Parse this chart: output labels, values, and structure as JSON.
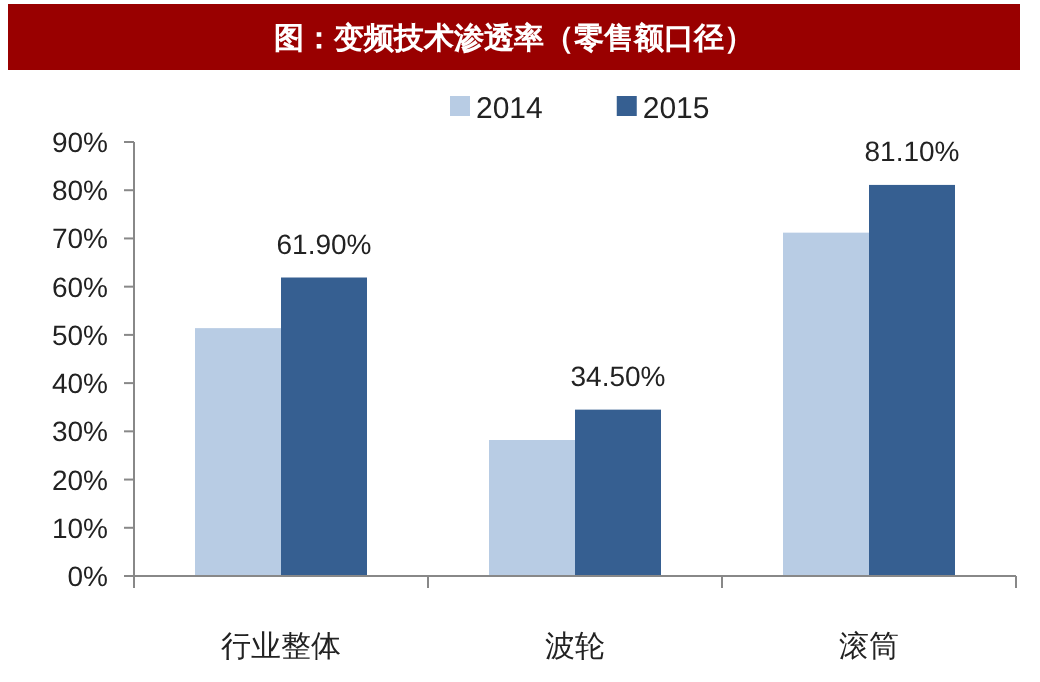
{
  "chart_data": {
    "type": "bar",
    "title": "图：变频技术渗透率（零售额口径）",
    "categories": [
      "行业整体",
      "波轮",
      "滚筒"
    ],
    "series": [
      {
        "name": "2014",
        "color": "#b8cce4",
        "values": [
          51.4,
          28.2,
          71.2
        ]
      },
      {
        "name": "2015",
        "color": "#365f91",
        "values": [
          61.9,
          34.5,
          81.1
        ],
        "value_labels": [
          "61.90%",
          "34.50%",
          "81.10%"
        ]
      }
    ],
    "ylim": [
      0,
      90
    ],
    "yticks": [
      {
        "value": 0,
        "label": "0%"
      },
      {
        "value": 10,
        "label": "10%"
      },
      {
        "value": 20,
        "label": "20%"
      },
      {
        "value": 30,
        "label": "30%"
      },
      {
        "value": 40,
        "label": "40%"
      },
      {
        "value": 50,
        "label": "50%"
      },
      {
        "value": 60,
        "label": "60%"
      },
      {
        "value": 70,
        "label": "70%"
      },
      {
        "value": 80,
        "label": "80%"
      },
      {
        "value": 90,
        "label": "90%"
      }
    ],
    "grid": false,
    "legend": "top"
  }
}
